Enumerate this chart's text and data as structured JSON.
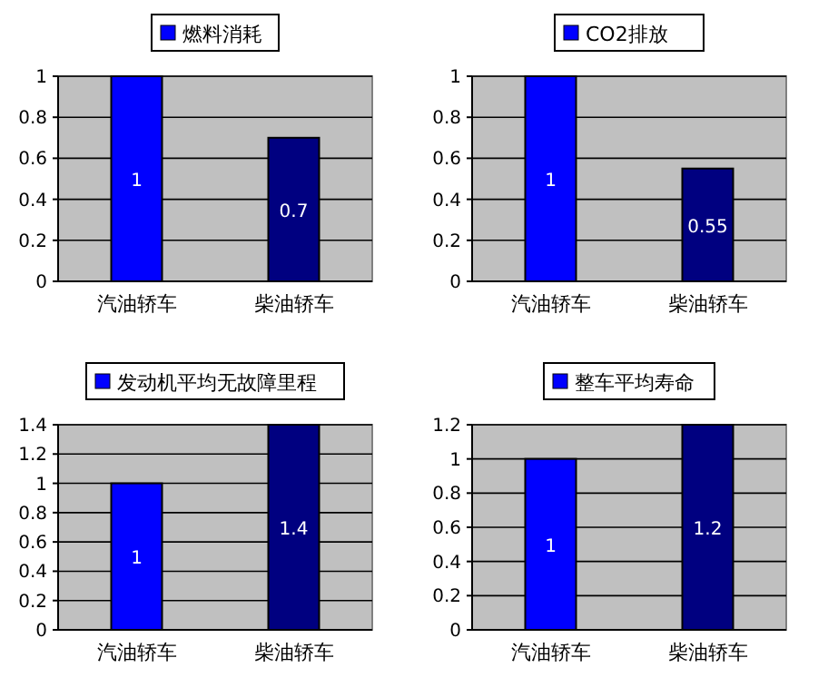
{
  "chart_data": [
    {
      "type": "bar",
      "categories": [
        "汽油轿车",
        "柴油轿车"
      ],
      "series": [
        {
          "name": "燃料消耗",
          "color": "#0000ff",
          "colors": [
            "#0000ff",
            "#000080"
          ],
          "values": [
            1,
            0.7
          ]
        }
      ],
      "ylim": [
        0,
        1
      ],
      "yticks": [
        0,
        0.2,
        0.4,
        0.6,
        0.8,
        1
      ],
      "grid": "y",
      "legend": "top",
      "data_labels": true
    },
    {
      "type": "bar",
      "categories": [
        "汽油轿车",
        "柴油轿车"
      ],
      "series": [
        {
          "name": "CO2排放",
          "color": "#0000ff",
          "colors": [
            "#0000ff",
            "#000080"
          ],
          "values": [
            1,
            0.55
          ]
        }
      ],
      "ylim": [
        0,
        1
      ],
      "yticks": [
        0,
        0.2,
        0.4,
        0.6,
        0.8,
        1
      ],
      "grid": "y",
      "legend": "top",
      "data_labels": true
    },
    {
      "type": "bar",
      "categories": [
        "汽油轿车",
        "柴油轿车"
      ],
      "series": [
        {
          "name": "发动机平均无故障里程",
          "color": "#0000ff",
          "colors": [
            "#0000ff",
            "#000080"
          ],
          "values": [
            1,
            1.4
          ]
        }
      ],
      "ylim": [
        0,
        1.4
      ],
      "yticks": [
        0,
        0.2,
        0.4,
        0.6,
        0.8,
        1,
        1.2,
        1.4
      ],
      "grid": "y",
      "legend": "top",
      "data_labels": true
    },
    {
      "type": "bar",
      "categories": [
        "汽油轿车",
        "柴油轿车"
      ],
      "series": [
        {
          "name": "整车平均寿命",
          "color": "#0000ff",
          "colors": [
            "#0000ff",
            "#000080"
          ],
          "values": [
            1,
            1.2
          ]
        }
      ],
      "ylim": [
        0,
        1.2
      ],
      "yticks": [
        0,
        0.2,
        0.4,
        0.6,
        0.8,
        1,
        1.2
      ],
      "grid": "y",
      "legend": "top",
      "data_labels": true
    }
  ]
}
